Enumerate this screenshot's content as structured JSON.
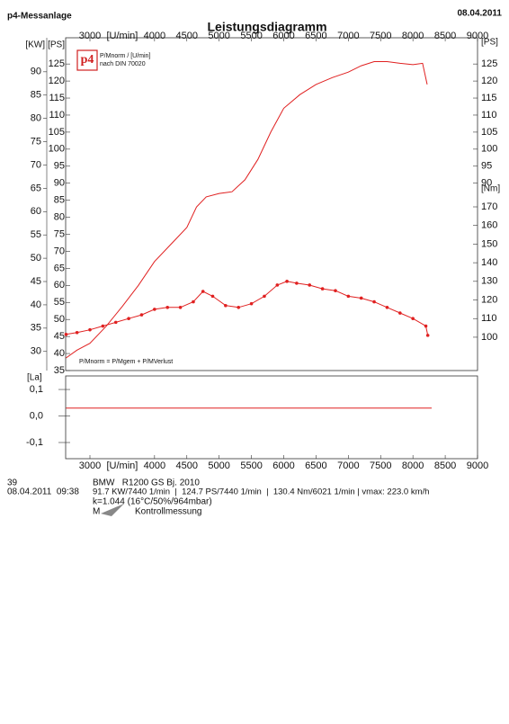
{
  "header": {
    "title": "p4-Messanlage",
    "date": "08.04.2011"
  },
  "chart_data": [
    {
      "type": "line",
      "title": "Leistungsdiagramm",
      "logo": "p4",
      "legend_title": "P/Mnorm / [U/min]",
      "legend_note": "nach DIN 70020",
      "formula": "P/Mnorm = P/Mgem + P/MVerlust",
      "xlabel": "[U/min]",
      "xlim": [
        2624,
        9000
      ],
      "xticks": [
        3000,
        4000,
        4500,
        5000,
        5500,
        6000,
        6500,
        7000,
        7500,
        8000,
        8500,
        9000
      ],
      "ylabel": "[PS]",
      "ylim": [
        35,
        132.7
      ],
      "yticks": [
        35,
        40,
        45,
        50,
        55,
        60,
        65,
        70,
        75,
        80,
        85,
        90,
        95,
        100,
        105,
        110,
        115,
        120,
        125
      ],
      "kw_axis": {
        "label": "[KW]",
        "lim": [
          25.9,
          97.3
        ],
        "ticks": [
          30,
          35,
          40,
          45,
          50,
          55,
          60,
          65,
          70,
          75,
          80,
          85,
          90
        ]
      },
      "right_ylabel": "[PS]",
      "right_yticks": [
        90,
        95,
        100,
        105,
        110,
        115,
        120,
        125
      ],
      "y2label": "[Nm]",
      "y2lim": [
        82.1,
        260.8
      ],
      "y2ticks": [
        100,
        110,
        120,
        130,
        140,
        150,
        160,
        170
      ],
      "series": [
        {
          "color": "#e02020",
          "x": [
            2630,
            2800,
            3000,
            3250,
            3500,
            3750,
            4000,
            4250,
            4500,
            4650,
            4800,
            5000,
            5200,
            5400,
            5600,
            5800,
            6000,
            6250,
            6500,
            6750,
            7000,
            7200,
            7400,
            7600,
            7800,
            8000,
            8150,
            8220
          ],
          "values": [
            38.7,
            41,
            43,
            48,
            53.8,
            60,
            67,
            72,
            77,
            83,
            86,
            87,
            87.5,
            91,
            97,
            105,
            112,
            116,
            119,
            121,
            122.6,
            124.5,
            125.7,
            125.7,
            125.2,
            124.8,
            125.2,
            119
          ]
        },
        {
          "color": "#e02020",
          "axis": "y2",
          "markers": true,
          "x": [
            2630,
            2800,
            3000,
            3200,
            3400,
            3600,
            3800,
            4000,
            4200,
            4400,
            4600,
            4750,
            4900,
            5100,
            5300,
            5500,
            5700,
            5900,
            6050,
            6200,
            6400,
            6600,
            6800,
            7000,
            7200,
            7400,
            7600,
            7800,
            8000,
            8200,
            8230
          ],
          "values": [
            101.5,
            102.5,
            104,
            106,
            108,
            110,
            112,
            115,
            116,
            116,
            119,
            124.6,
            122,
            117,
            116,
            118,
            122,
            128,
            130,
            129,
            128,
            126,
            125,
            122,
            121,
            119,
            116,
            113,
            110,
            106,
            101
          ]
        }
      ]
    },
    {
      "type": "line",
      "ylabel": "[La]",
      "xlabel": "[U/min]",
      "xlim": [
        2624,
        9000
      ],
      "xticks": [
        3000,
        4000,
        4500,
        5000,
        5500,
        6000,
        6500,
        7000,
        7500,
        8000,
        8500,
        9000
      ],
      "ylim": [
        -0.161,
        0.151
      ],
      "yticks": [
        {
          "value": 0.1,
          "label": "0,1"
        },
        {
          "value": 0,
          "label": "0,0"
        },
        {
          "value": -0.1,
          "label": "-0,1"
        }
      ],
      "series": [
        {
          "color": "#e02020",
          "x": [
            2630,
            8290
          ],
          "values": [
            0.03,
            0.03
          ]
        }
      ]
    }
  ],
  "footer": {
    "run": "39",
    "vehicle": "BMW   R1200 GS Bj. 2010",
    "datetime": "08.04.2011  09:38",
    "summary": "91.7 KW/7440 1/min  |  124.7 PS/7440 1/min  |  130.4 Nm/6021 1/min | vmax: 223.0 km/h",
    "conditions": "k=1.044 (16°C/50%/964mbar)",
    "mode": "M",
    "note": "Kontrollmessung"
  }
}
